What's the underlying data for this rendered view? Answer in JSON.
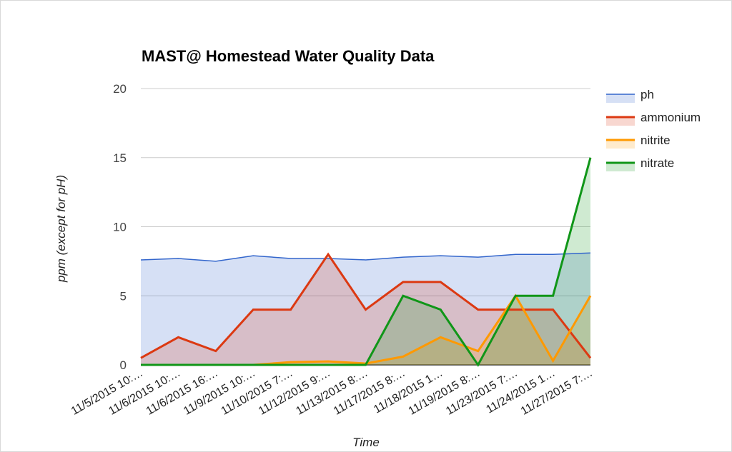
{
  "chart_data": {
    "type": "area",
    "title": "MAST@ Homestead Water Quality Data",
    "xlabel": "Time",
    "ylabel": "ppm (except for pH)",
    "ylim": [
      0,
      20
    ],
    "yticks": [
      "0",
      "5",
      "10",
      "15",
      "20"
    ],
    "grid": true,
    "legend_position": "right",
    "categories": [
      "11/5/2015 10:…",
      "11/6/2015 10:…",
      "11/6/2015 16:…",
      "11/9/2015 10:…",
      "11/10/2015 7:…",
      "11/12/2015 9:…",
      "11/13/2015 8:…",
      "11/17/2015 8:…",
      "11/18/2015 1…",
      "11/19/2015 8:…",
      "11/23/2015 7:…",
      "11/24/2015 1…",
      "11/27/2015 7:…"
    ],
    "series": [
      {
        "name": "ph",
        "color": "#3366cc",
        "values": [
          7.6,
          7.7,
          7.5,
          7.9,
          7.7,
          7.7,
          7.6,
          7.8,
          7.9,
          7.8,
          8.0,
          8.0,
          8.1
        ]
      },
      {
        "name": "ammonium",
        "color": "#dc3912",
        "values": [
          0.5,
          2,
          1,
          4,
          4,
          8,
          4,
          6,
          6,
          4,
          4,
          4,
          0.5
        ]
      },
      {
        "name": "nitrite",
        "color": "#ff9900",
        "values": [
          0,
          0,
          0,
          0,
          0.2,
          0.25,
          0.1,
          0.6,
          2,
          1,
          5,
          0.3,
          5
        ]
      },
      {
        "name": "nitrate",
        "color": "#109618",
        "values": [
          0,
          0,
          0,
          0,
          0,
          0,
          0,
          5,
          4,
          0,
          5,
          5,
          15
        ]
      }
    ]
  }
}
